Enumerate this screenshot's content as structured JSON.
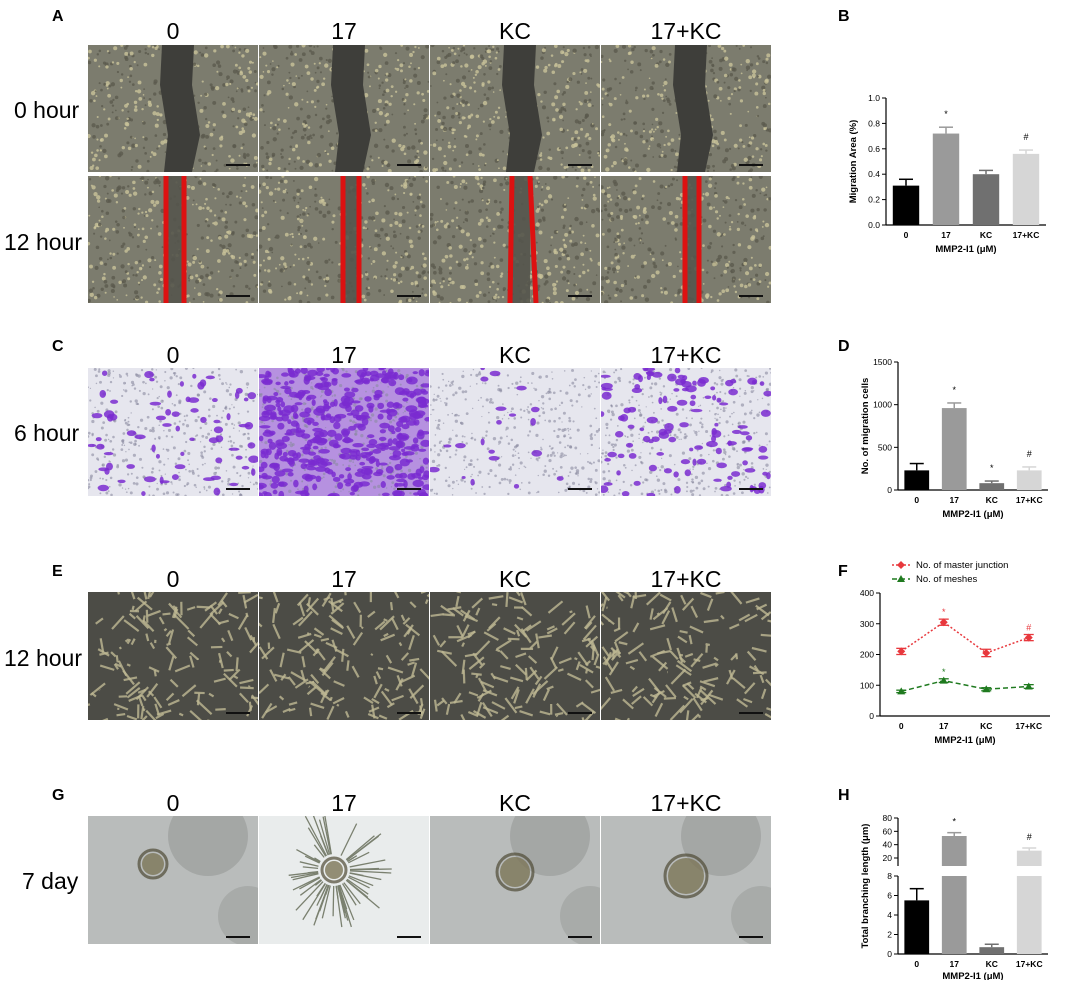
{
  "panels": {
    "A": "A",
    "B": "B",
    "C": "C",
    "D": "D",
    "E": "E",
    "F": "F",
    "G": "G",
    "H": "H"
  },
  "columns": [
    "0",
    "17",
    "KC",
    "17+KC"
  ],
  "rows": {
    "a0": "0 hour",
    "a12": "12 hour",
    "c": "6 hour",
    "e": "12 hour",
    "g": "7 day"
  },
  "colors": {
    "scratch_line": "#dd1111",
    "crystal_violet": "#7a2bd0",
    "series_master": "#e8383d",
    "series_meshes": "#1f7a1f"
  },
  "chart_data": [
    {
      "id": "B",
      "type": "bar",
      "categories": [
        "0",
        "17",
        "KC",
        "17+KC"
      ],
      "values": [
        0.31,
        0.72,
        0.4,
        0.56
      ],
      "errors": [
        0.05,
        0.05,
        0.03,
        0.03
      ],
      "bar_colors": [
        "#000000",
        "#9a9a9a",
        "#707070",
        "#d6d6d6"
      ],
      "annotations": [
        "",
        "*",
        "",
        "#"
      ],
      "xlabel": "MMP2-I1 (μM)",
      "ylabel": "Migration Area (%)",
      "ylim": [
        0,
        1.0
      ],
      "yticks": [
        "0.0",
        "0.2",
        "0.4",
        "0.6",
        "0.8",
        "1.0"
      ]
    },
    {
      "id": "D",
      "type": "bar",
      "categories": [
        "0",
        "17",
        "KC",
        "17+KC"
      ],
      "values": [
        230,
        960,
        80,
        230
      ],
      "errors": [
        80,
        60,
        25,
        40
      ],
      "bar_colors": [
        "#000000",
        "#9a9a9a",
        "#707070",
        "#d6d6d6"
      ],
      "annotations": [
        "",
        "*",
        "*",
        "#"
      ],
      "xlabel": "MMP2-I1 (μM)",
      "ylabel": "No. of migration cells",
      "ylim": [
        0,
        1500
      ],
      "yticks": [
        "0",
        "500",
        "1000",
        "1500"
      ]
    },
    {
      "id": "F",
      "type": "line",
      "categories": [
        "0",
        "17",
        "KC",
        "17+KC"
      ],
      "series": [
        {
          "name": "No. of master junction",
          "values": [
            210,
            305,
            205,
            255
          ],
          "errors": [
            10,
            10,
            12,
            10
          ],
          "annotations": [
            "",
            "*",
            "",
            "#"
          ]
        },
        {
          "name": "No. of meshes",
          "values": [
            80,
            115,
            87,
            96
          ],
          "errors": [
            4,
            6,
            5,
            6
          ],
          "annotations": [
            "",
            "*",
            "",
            ""
          ]
        }
      ],
      "xlabel": "MMP2-I1 (μM)",
      "ylabel": "",
      "ylim": [
        0,
        400
      ],
      "yticks": [
        "0",
        "100",
        "200",
        "300",
        "400"
      ],
      "legend_position": "top-left"
    },
    {
      "id": "H",
      "type": "bar",
      "broken_axis": true,
      "categories": [
        "0",
        "17",
        "KC",
        "17+KC"
      ],
      "values": [
        5.5,
        53,
        0.7,
        31
      ],
      "errors": [
        1.2,
        5,
        0.3,
        4
      ],
      "bar_colors": [
        "#000000",
        "#9a9a9a",
        "#707070",
        "#d6d6d6"
      ],
      "annotations": [
        "",
        "*",
        "",
        "#"
      ],
      "xlabel": "MMP2-I1 (μM)",
      "ylabel": "Total branching length (μm)",
      "lower_range": [
        0,
        8
      ],
      "upper_range": [
        8,
        80
      ],
      "lower_ticks": [
        "0",
        "2",
        "4",
        "6",
        "8"
      ],
      "upper_ticks": [
        "20",
        "40",
        "60",
        "80"
      ]
    }
  ]
}
